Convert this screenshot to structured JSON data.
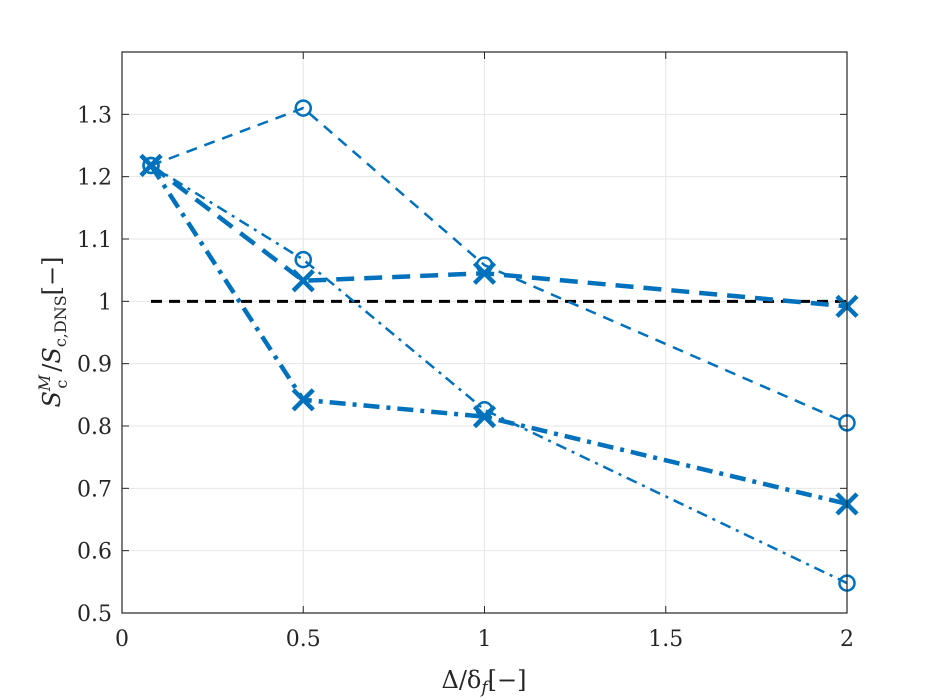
{
  "chart_data": {
    "type": "line",
    "xlabel": "Δ/δ_f[−]",
    "ylabel": "S_c^M / S_c,DNS[−]",
    "xlim": [
      0,
      2
    ],
    "ylim": [
      0.5,
      1.4
    ],
    "xticks": [
      0,
      0.5,
      1,
      1.5,
      2
    ],
    "xtick_labels": [
      "0",
      "0.5",
      "1",
      "1.5",
      "2"
    ],
    "yticks": [
      0.5,
      0.6,
      0.7,
      0.8,
      0.9,
      1.0,
      1.1,
      1.2,
      1.3
    ],
    "ytick_labels": [
      "0.5",
      "0.6",
      "0.7",
      "0.8",
      "0.9",
      "1",
      "1.1",
      "1.2",
      "1.3"
    ],
    "grid": true,
    "colors": {
      "series": "#0072BD",
      "reference": "#000000",
      "grid": "#e6e6e6",
      "axis": "#262626"
    },
    "reference_line": {
      "y": 1.0,
      "style": "dashed",
      "color": "#000000"
    },
    "series": [
      {
        "marker": "circle",
        "style": "dashed",
        "weight": "thin",
        "x": [
          0.08,
          0.5,
          1.0,
          2.0
        ],
        "y": [
          1.218,
          1.31,
          1.058,
          0.805
        ]
      },
      {
        "marker": "circle",
        "style": "dashdot",
        "weight": "thin",
        "x": [
          0.08,
          0.5,
          1.0,
          2.0
        ],
        "y": [
          1.218,
          1.067,
          0.826,
          0.548
        ]
      },
      {
        "marker": "x",
        "style": "dashed",
        "weight": "thick",
        "x": [
          0.08,
          0.5,
          1.0,
          2.0
        ],
        "y": [
          1.218,
          1.033,
          1.045,
          0.992
        ]
      },
      {
        "marker": "x",
        "style": "dashdot",
        "weight": "thick",
        "x": [
          0.08,
          0.5,
          1.0,
          2.0
        ],
        "y": [
          1.218,
          0.842,
          0.815,
          0.675
        ]
      }
    ]
  }
}
